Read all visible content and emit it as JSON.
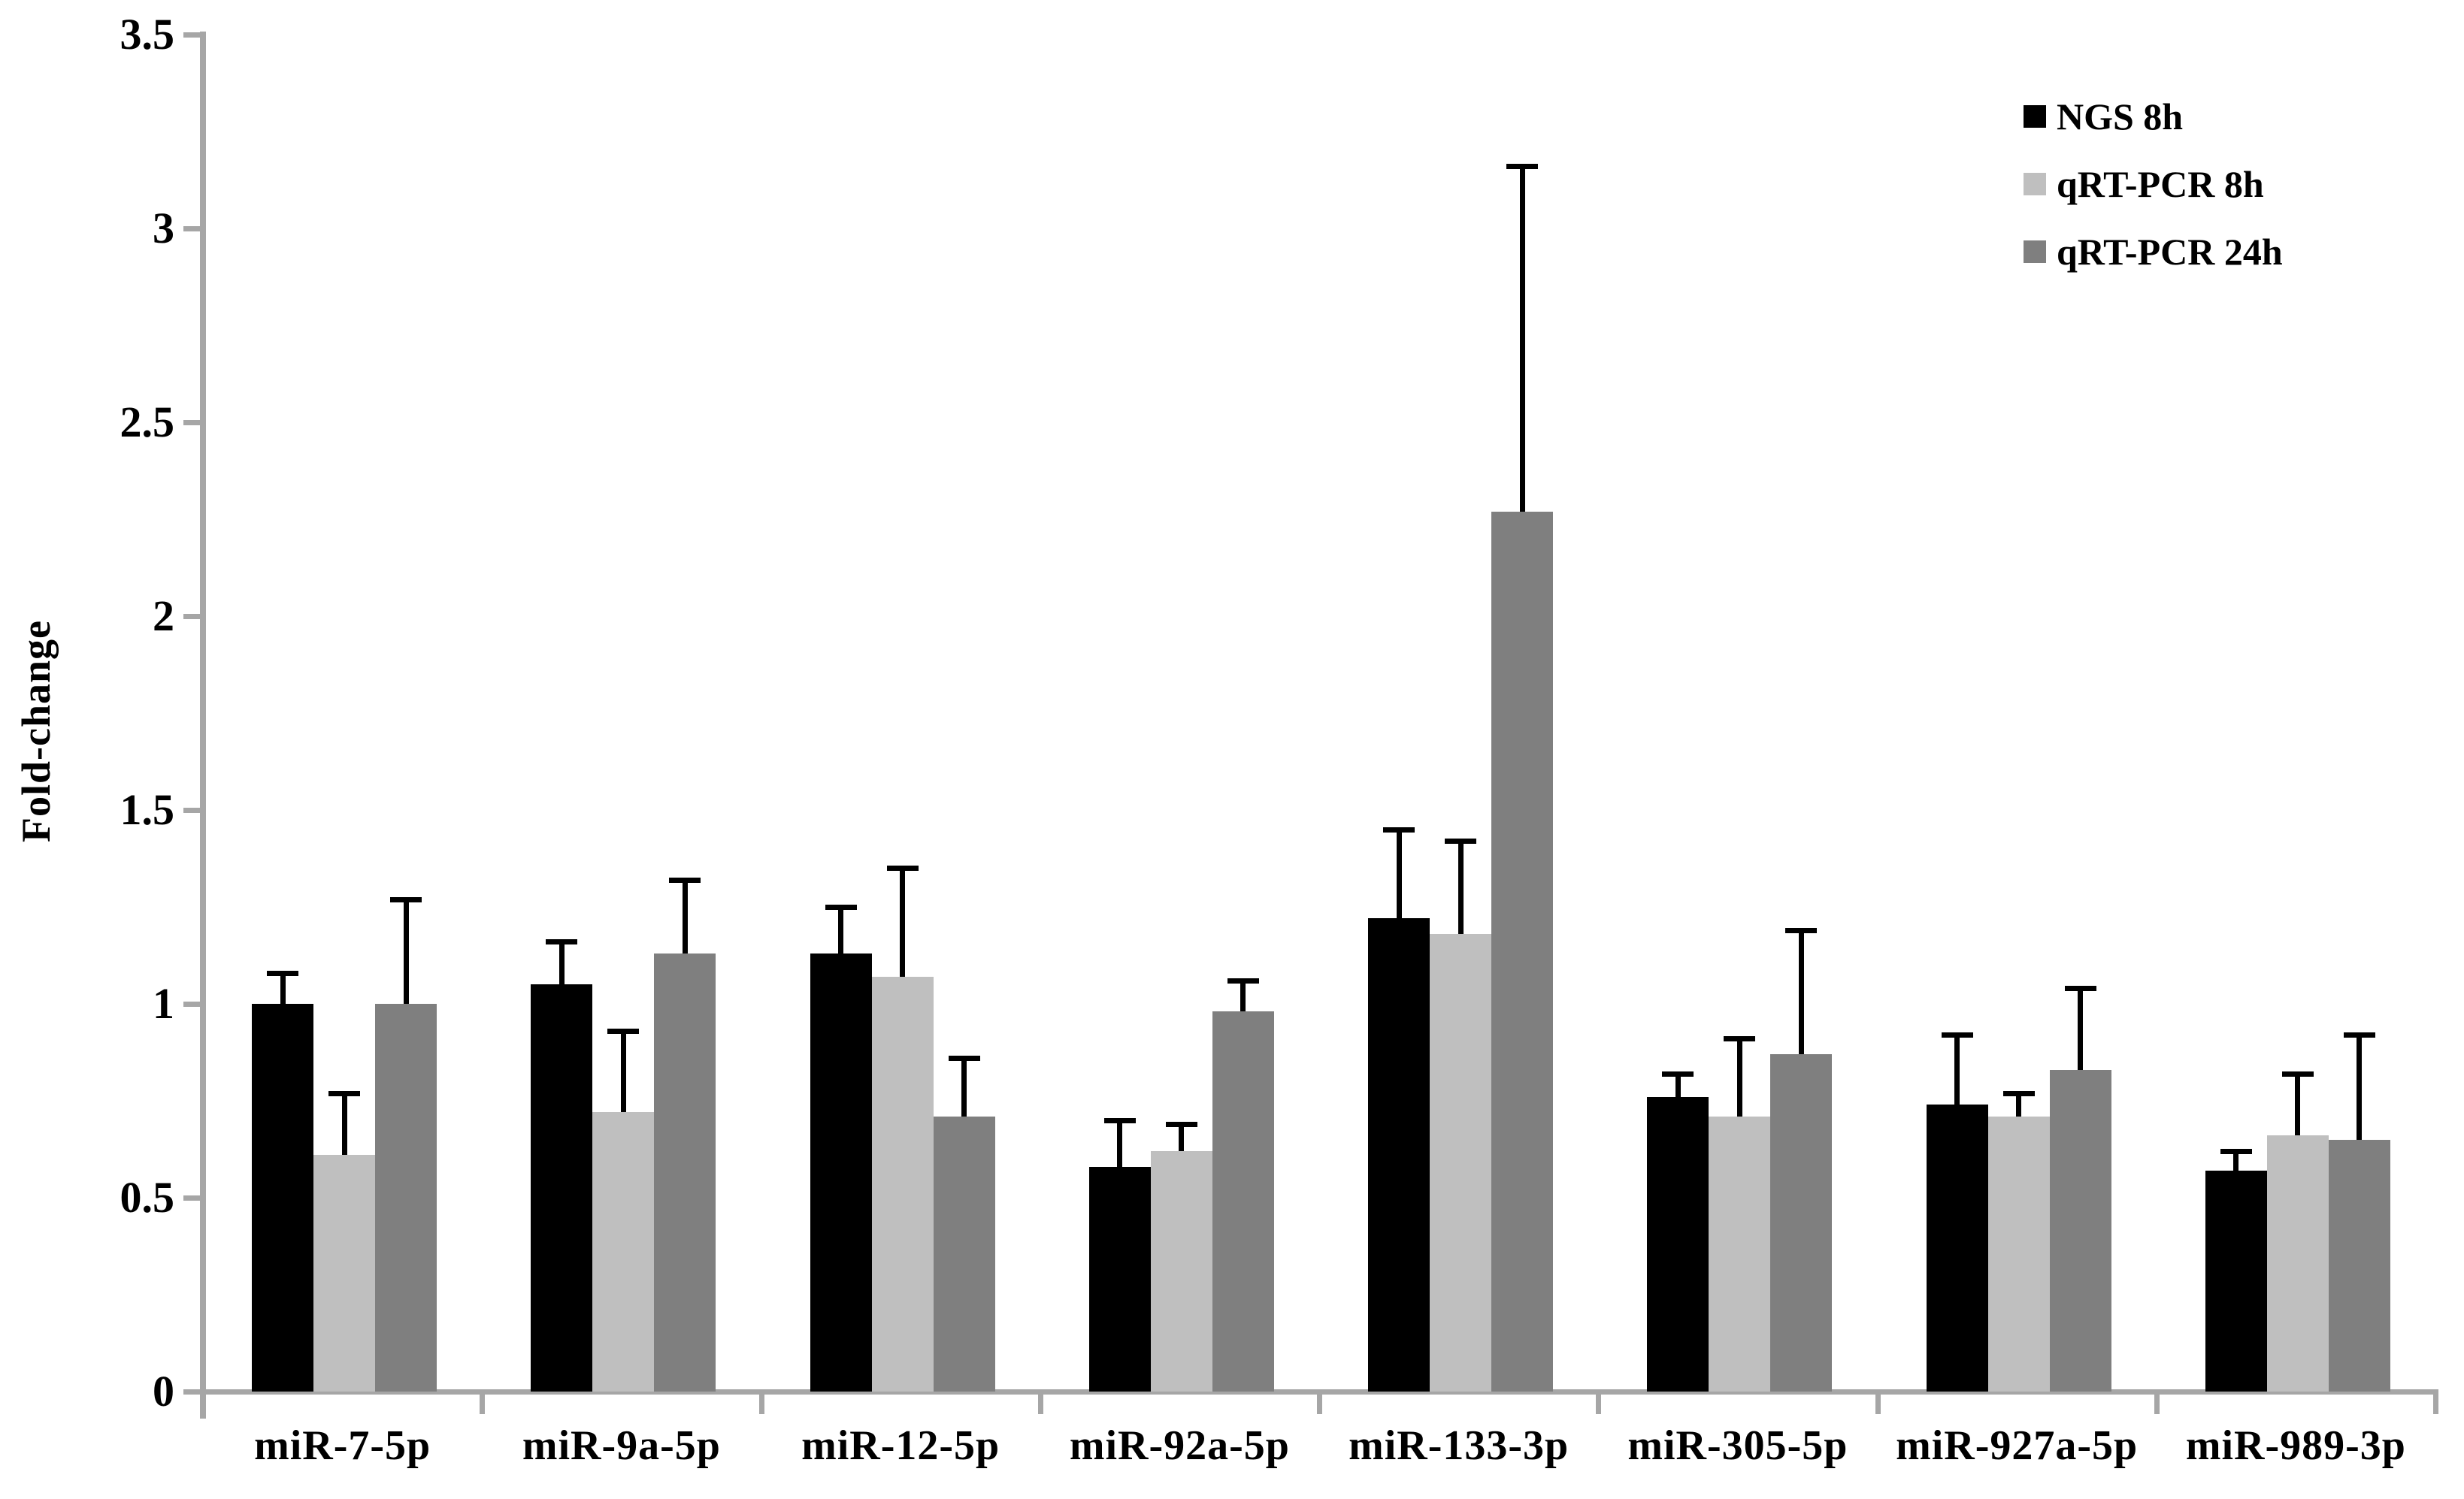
{
  "figure": {
    "background": "#ffffff"
  },
  "axis": {
    "line_color": "#a6a6a6",
    "tick_color": "#a6a6a6",
    "text_color": "#000000"
  },
  "chart_data": {
    "type": "bar",
    "title": "",
    "xlabel": "",
    "ylabel": "Fold-change",
    "ylim": [
      0,
      3.5
    ],
    "ytick_step": 0.5,
    "ytick_labels": [
      "0",
      "0.5",
      "1",
      "1.5",
      "2",
      "2.5",
      "3",
      "3.5"
    ],
    "grid": false,
    "legend_position": "top-right",
    "error_bars": "upper-only",
    "categories": [
      "miR-7-5p",
      "miR-9a-5p",
      "miR-12-5p",
      "miR-92a-5p",
      "miR-133-3p",
      "miR-305-5p",
      "miR-927a-5p",
      "miR-989-3p"
    ],
    "series": [
      {
        "name": "NGS 8h",
        "color": "#000000",
        "values": [
          1.0,
          1.05,
          1.13,
          0.58,
          1.22,
          0.76,
          0.74,
          0.57
        ],
        "errors": [
          0.08,
          0.11,
          0.12,
          0.12,
          0.23,
          0.06,
          0.18,
          0.05
        ]
      },
      {
        "name": "qRT-PCR 8h",
        "color": "#bfbfbf",
        "values": [
          0.61,
          0.72,
          1.07,
          0.62,
          1.18,
          0.71,
          0.71,
          0.66
        ],
        "errors": [
          0.16,
          0.21,
          0.28,
          0.07,
          0.24,
          0.2,
          0.06,
          0.16
        ]
      },
      {
        "name": "qRT-PCR 24h",
        "color": "#7f7f7f",
        "values": [
          1.0,
          1.13,
          0.71,
          0.98,
          2.27,
          0.87,
          0.83,
          0.65
        ],
        "errors": [
          0.27,
          0.19,
          0.15,
          0.08,
          0.89,
          0.32,
          0.21,
          0.27
        ]
      }
    ]
  }
}
